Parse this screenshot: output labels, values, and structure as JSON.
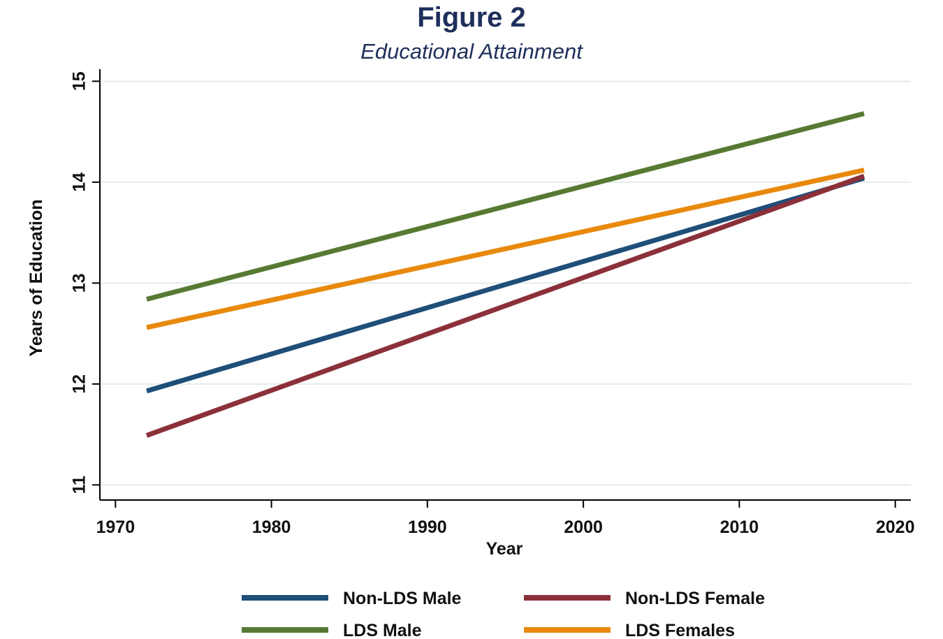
{
  "chart_data": {
    "type": "line",
    "title": "Figure 2",
    "subtitle": "Educational Attainment",
    "xlabel": "Year",
    "ylabel": "Years of Education",
    "xlim": [
      1969,
      2021
    ],
    "ylim": [
      10.85,
      15.12
    ],
    "xticks": [
      1970,
      1980,
      1990,
      2000,
      2010,
      2020
    ],
    "yticks": [
      11,
      12,
      13,
      14,
      15
    ],
    "grid": true,
    "legend_position": "bottom",
    "series": [
      {
        "name": "Non-LDS Male",
        "color": "#1f4e79",
        "x": [
          1972,
          2018
        ],
        "values": [
          11.93,
          14.04
        ]
      },
      {
        "name": "Non-LDS Female",
        "color": "#8b3039",
        "x": [
          1972,
          2018
        ],
        "values": [
          11.49,
          14.06
        ]
      },
      {
        "name": "LDS Male",
        "color": "#567a32",
        "x": [
          1972,
          2018
        ],
        "values": [
          12.84,
          14.68
        ]
      },
      {
        "name": "LDS Females",
        "color": "#e8890c",
        "x": [
          1972,
          2018
        ],
        "values": [
          12.56,
          14.12
        ]
      }
    ]
  }
}
